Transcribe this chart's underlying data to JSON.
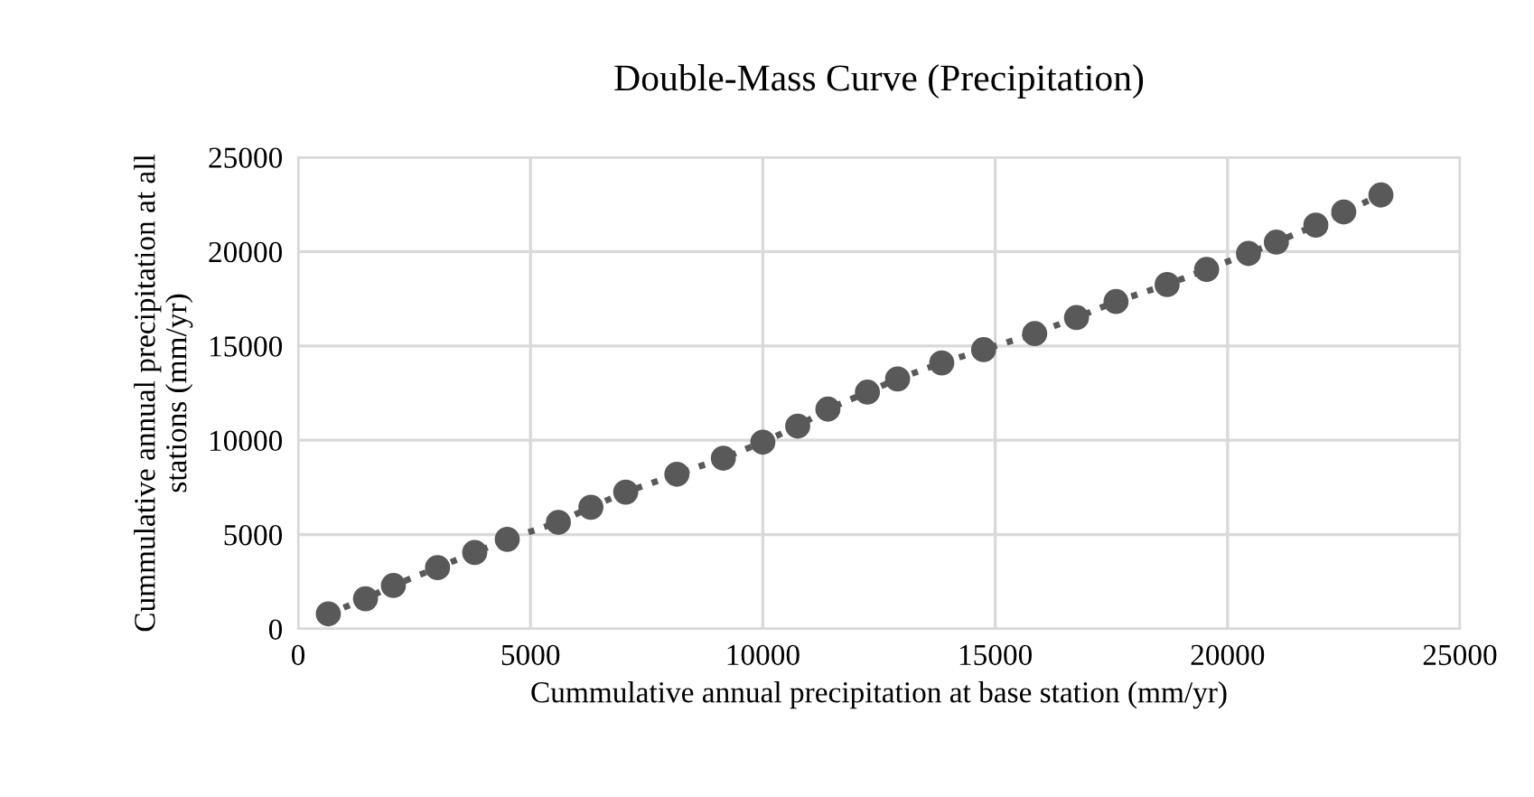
{
  "chart_data": {
    "type": "line",
    "title": "Double-Mass Curve (Precipitation)",
    "xlabel": "Cummulative annual precipitation at base station (mm/yr)",
    "ylabel": "Cummulative annual precipitation at all\nstations (mm/yr)",
    "x": [
      650,
      1450,
      2050,
      3000,
      3800,
      4500,
      5600,
      6300,
      7050,
      8150,
      9150,
      10000,
      10750,
      11400,
      12250,
      12900,
      13850,
      14750,
      15850,
      16750,
      17600,
      18700,
      19550,
      20450,
      21050,
      21900,
      22500,
      23300
    ],
    "series": [
      {
        "color": "#595959",
        "values": [
          800,
          1600,
          2300,
          3250,
          4050,
          4750,
          5650,
          6450,
          7250,
          8200,
          9050,
          9900,
          10750,
          11650,
          12550,
          13250,
          14100,
          14800,
          15650,
          16500,
          17350,
          18250,
          19050,
          19900,
          20500,
          21400,
          22100,
          23000
        ]
      }
    ],
    "xlim": [
      0,
      25000
    ],
    "xticks": [
      0,
      5000,
      10000,
      15000,
      20000,
      25000
    ],
    "ylim": [
      0,
      25000
    ],
    "yticks": [
      0,
      5000,
      10000,
      15000,
      20000,
      25000
    ],
    "grid": true,
    "marker": "circle",
    "line_style": "dotted"
  }
}
